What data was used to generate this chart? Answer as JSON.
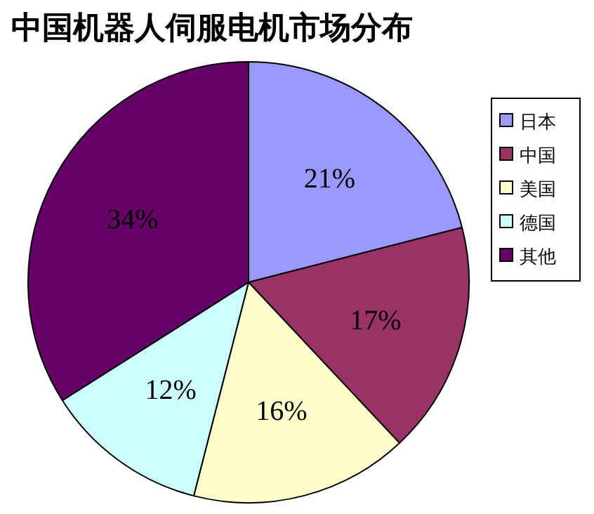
{
  "chart_data": {
    "type": "pie",
    "title": "中国机器人伺服电机市场分布",
    "categories": [
      "日本",
      "中国",
      "美国",
      "德国",
      "其他"
    ],
    "values": [
      21,
      17,
      16,
      12,
      34
    ],
    "colors": [
      "#9999ff",
      "#993366",
      "#ffffcc",
      "#ccffff",
      "#660066"
    ],
    "value_labels": [
      "21%",
      "17%",
      "16%",
      "12%",
      "34%"
    ],
    "legend": "right"
  }
}
